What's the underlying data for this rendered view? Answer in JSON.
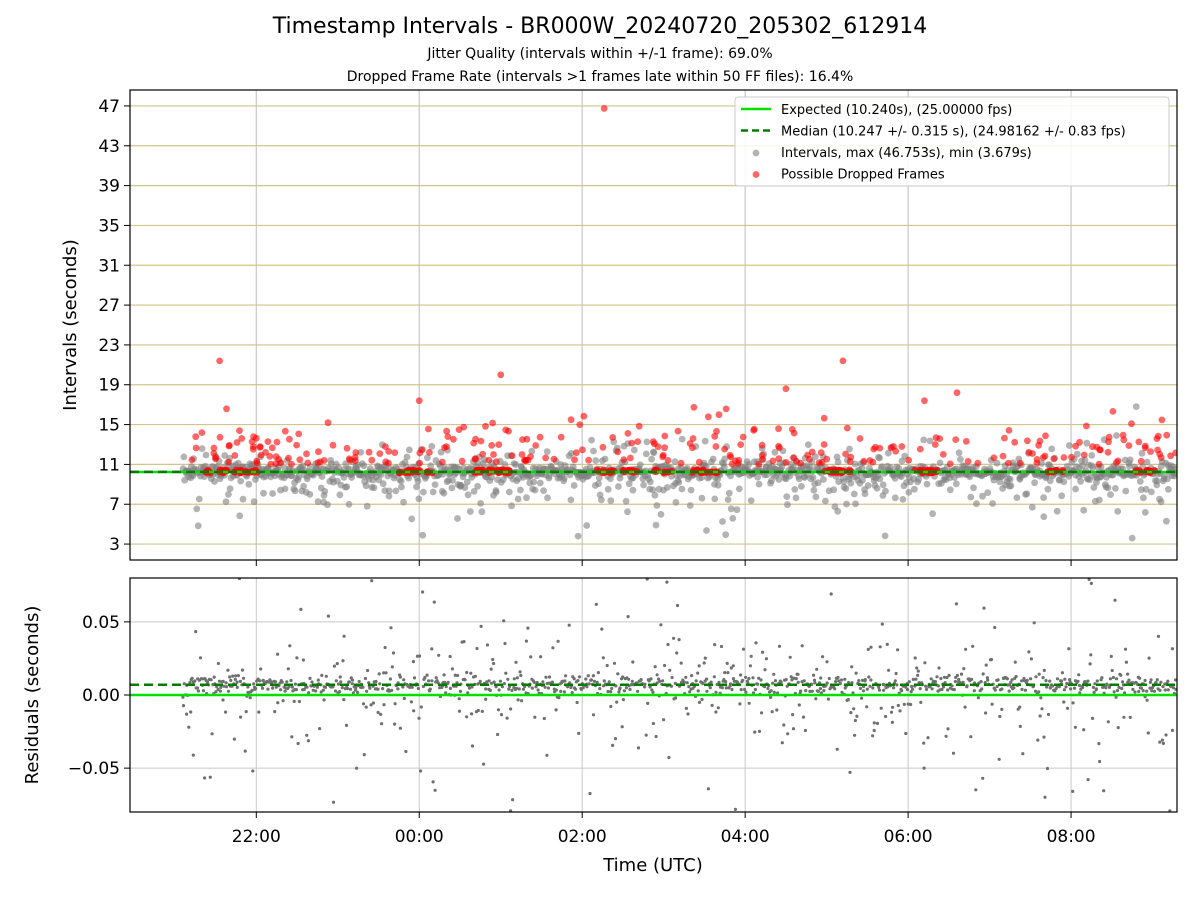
{
  "title": "Timestamp Intervals - BR000W_20240720_205302_612914",
  "subtitle_jitter": "Jitter Quality (intervals within +/-1 frame): 69.0%",
  "subtitle_dropped": "Dropped Frame Rate (intervals >1 frames late within 50 FF files): 16.4%",
  "colors": {
    "expected": "#00e000",
    "median": "#007a00",
    "intervals": "#808080",
    "dropped": "#ff0000",
    "grid_top": "#d2c48a",
    "grid_bottom": "#c8c8c8"
  },
  "chart_data": [
    {
      "type": "scatter",
      "panel": "intervals",
      "ylabel": "Intervals (seconds)",
      "xlabel": "",
      "ylim": [
        1.4,
        48.6
      ],
      "yticks": [
        3,
        7,
        11,
        15,
        19,
        23,
        27,
        31,
        35,
        39,
        43,
        47
      ],
      "xticks": [
        {
          "hours": 22,
          "label": "22:00"
        },
        {
          "hours": 24,
          "label": "00:00"
        },
        {
          "hours": 26,
          "label": "02:00"
        },
        {
          "hours": 28,
          "label": "04:00"
        },
        {
          "hours": 30,
          "label": "06:00"
        },
        {
          "hours": 32,
          "label": "08:00"
        }
      ],
      "xlim_hours": [
        20.45,
        33.3
      ],
      "x_data_start_hours": 21.1,
      "expected_interval": 10.24,
      "median_interval": 10.247,
      "legend": {
        "position": "upper right",
        "entries": [
          {
            "key": "expected",
            "label": "Expected (10.240s), (25.00000 fps)"
          },
          {
            "key": "median",
            "label": "Median (10.247 +/- 0.315 s), (24.98162 +/- 0.83 fps)"
          },
          {
            "key": "intervals",
            "label": "Intervals, max (46.753s), min (3.679s)"
          },
          {
            "key": "dropped",
            "label": "Possible Dropped Frames"
          }
        ]
      },
      "interval_stats": {
        "max": 46.753,
        "min": 3.679
      },
      "notable_points": [
        {
          "x_hours": 26.27,
          "y": 46.75,
          "series": "dropped"
        },
        {
          "x_hours": 21.55,
          "y": 21.4,
          "series": "dropped"
        },
        {
          "x_hours": 25.0,
          "y": 20.0,
          "series": "dropped"
        },
        {
          "x_hours": 29.2,
          "y": 21.4,
          "series": "dropped"
        },
        {
          "x_hours": 28.5,
          "y": 18.6,
          "series": "dropped"
        },
        {
          "x_hours": 30.6,
          "y": 18.2,
          "series": "dropped"
        },
        {
          "x_hours": 30.2,
          "y": 17.4,
          "series": "dropped"
        },
        {
          "x_hours": 24.0,
          "y": 17.4,
          "series": "dropped"
        },
        {
          "x_hours": 32.8,
          "y": 16.8,
          "series": "intervals"
        },
        {
          "x_hours": 32.75,
          "y": 3.6,
          "series": "intervals"
        },
        {
          "x_hours": 25.95,
          "y": 3.8,
          "series": "intervals"
        }
      ]
    },
    {
      "type": "scatter",
      "panel": "residuals",
      "ylabel": "Residuals (seconds)",
      "xlabel": "Time (UTC)",
      "ylim": [
        -0.08,
        0.08
      ],
      "yticks": [
        {
          "value": -0.05,
          "label": "−0.05"
        },
        {
          "value": 0.0,
          "label": "0.00"
        },
        {
          "value": 0.05,
          "label": "0.05"
        }
      ],
      "expected_residual": 0.0,
      "median_residual": 0.007
    }
  ]
}
